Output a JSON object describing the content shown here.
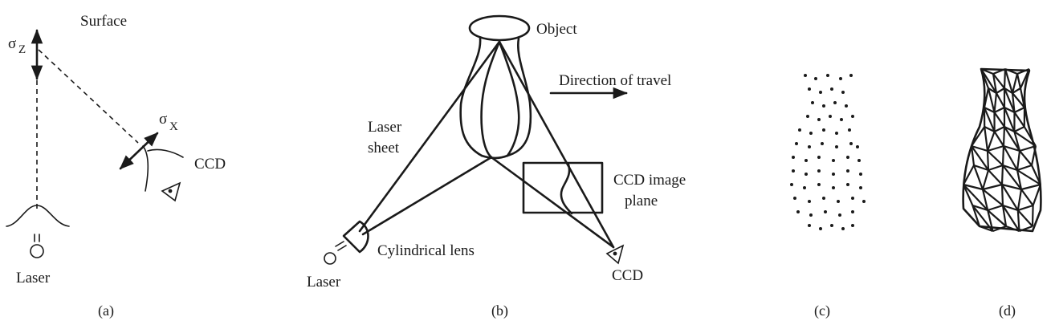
{
  "panel_a": {
    "surface": "Surface",
    "sigma_z_sym": "σ",
    "sigma_z_sub": "Z",
    "sigma_x_sym": "σ",
    "sigma_x_sub": "X",
    "ccd": "CCD",
    "laser": "Laser",
    "caption": "(a)"
  },
  "panel_b": {
    "object": "Object",
    "direction": "Direction of travel",
    "laser_sheet_1": "Laser",
    "laser_sheet_2": "sheet",
    "ccd_plane_1": "CCD image",
    "ccd_plane_2": "plane",
    "cyl_lens": "Cylindrical lens",
    "laser": "Laser",
    "ccd": "CCD",
    "caption": "(b)"
  },
  "panel_c": {
    "caption": "(c)"
  },
  "panel_d": {
    "caption": "(d)"
  }
}
